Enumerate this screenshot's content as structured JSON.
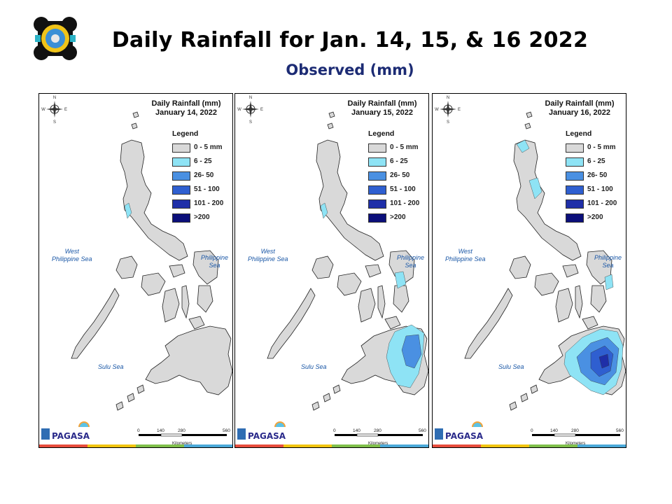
{
  "header": {
    "title": "Daily Rainfall for Jan. 14, 15, & 16 2022",
    "subtitle": "Observed (mm)"
  },
  "legend": {
    "title": "Legend",
    "items": [
      {
        "label": "0 - 5 mm",
        "color": "#d9d9d9"
      },
      {
        "label": "6 - 25",
        "color": "#8ee3f5"
      },
      {
        "label": "26- 50",
        "color": "#4a90e2"
      },
      {
        "label": "51 - 100",
        "color": "#2f5fd0"
      },
      {
        "label": "101 - 200",
        "color": "#1f2fa8"
      },
      {
        "label": ">200",
        "color": "#0b0f7a"
      }
    ]
  },
  "seas": {
    "west": "West\nPhilippine Sea",
    "east": "Philippine Sea",
    "sulu": "Sulu Sea"
  },
  "compass": {
    "n": "N",
    "s": "S",
    "e": "E",
    "w": "W"
  },
  "scale": {
    "ticks": [
      "0",
      "140",
      "280",
      "560"
    ],
    "unit": "Kilometers"
  },
  "branding": {
    "agency": "PAGASA"
  },
  "panels": [
    {
      "title_line1": "Daily Rainfall (mm)",
      "title_line2": "January 14, 2022",
      "rain_level": "low"
    },
    {
      "title_line1": "Daily Rainfall (mm)",
      "title_line2": "January 15, 2022",
      "rain_level": "medium"
    },
    {
      "title_line1": "Daily Rainfall (mm)",
      "title_line2": "January 16, 2022",
      "rain_level": "high"
    }
  ]
}
